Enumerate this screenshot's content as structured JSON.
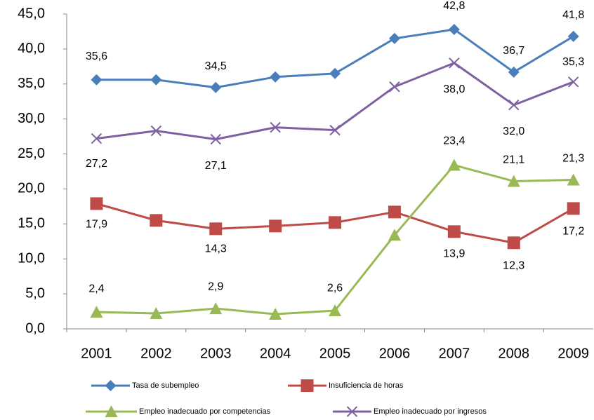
{
  "chart_data": {
    "type": "line",
    "categories": [
      "2001",
      "2002",
      "2003",
      "2004",
      "2005",
      "2006",
      "2007",
      "2008",
      "2009"
    ],
    "series": [
      {
        "name": "Tasa de subempleo",
        "color": "#4a7ebb",
        "marker": "diamond",
        "values": [
          35.6,
          35.6,
          34.5,
          36.0,
          36.5,
          41.5,
          42.8,
          36.7,
          41.8
        ],
        "value_labels": [
          "35,6",
          null,
          "34,5",
          null,
          null,
          null,
          "42,8",
          "36,7",
          "41,8"
        ]
      },
      {
        "name": "Insuficiencia de horas",
        "color": "#be4b48",
        "marker": "square",
        "values": [
          17.9,
          15.5,
          14.3,
          14.7,
          15.2,
          16.7,
          13.9,
          12.3,
          17.2
        ],
        "value_labels": [
          "17,9",
          null,
          "14,3",
          null,
          null,
          null,
          "13,9",
          "12,3",
          "17,2"
        ]
      },
      {
        "name": "Empleo inadecuado por competencias",
        "color": "#98b954",
        "marker": "triangle",
        "values": [
          2.4,
          2.2,
          2.9,
          2.1,
          2.6,
          13.4,
          23.4,
          21.1,
          21.3
        ],
        "value_labels": [
          "2,4",
          null,
          "2,9",
          null,
          "2,6",
          null,
          "23,4",
          "21,1",
          "21,3"
        ]
      },
      {
        "name": "Empleo inadecuado por ingresos",
        "color": "#7d60a0",
        "marker": "x",
        "values": [
          27.2,
          28.3,
          27.1,
          28.8,
          28.4,
          34.6,
          38.0,
          32.0,
          35.3
        ],
        "value_labels": [
          "27,2",
          null,
          "27,1",
          null,
          null,
          null,
          "38,0",
          "32,0",
          "35,3"
        ]
      }
    ],
    "ylim": [
      0,
      45
    ],
    "yticks": [
      {
        "value": 0,
        "label": "0,0"
      },
      {
        "value": 5,
        "label": "5,0"
      },
      {
        "value": 10,
        "label": "10,0"
      },
      {
        "value": 15,
        "label": "15,0"
      },
      {
        "value": 20,
        "label": "20,0"
      },
      {
        "value": 25,
        "label": "25,0"
      },
      {
        "value": 30,
        "label": "30,0"
      },
      {
        "value": 35,
        "label": "35,0"
      },
      {
        "value": 40,
        "label": "40,0"
      },
      {
        "value": 45,
        "label": "45,0"
      }
    ],
    "grid": false
  }
}
